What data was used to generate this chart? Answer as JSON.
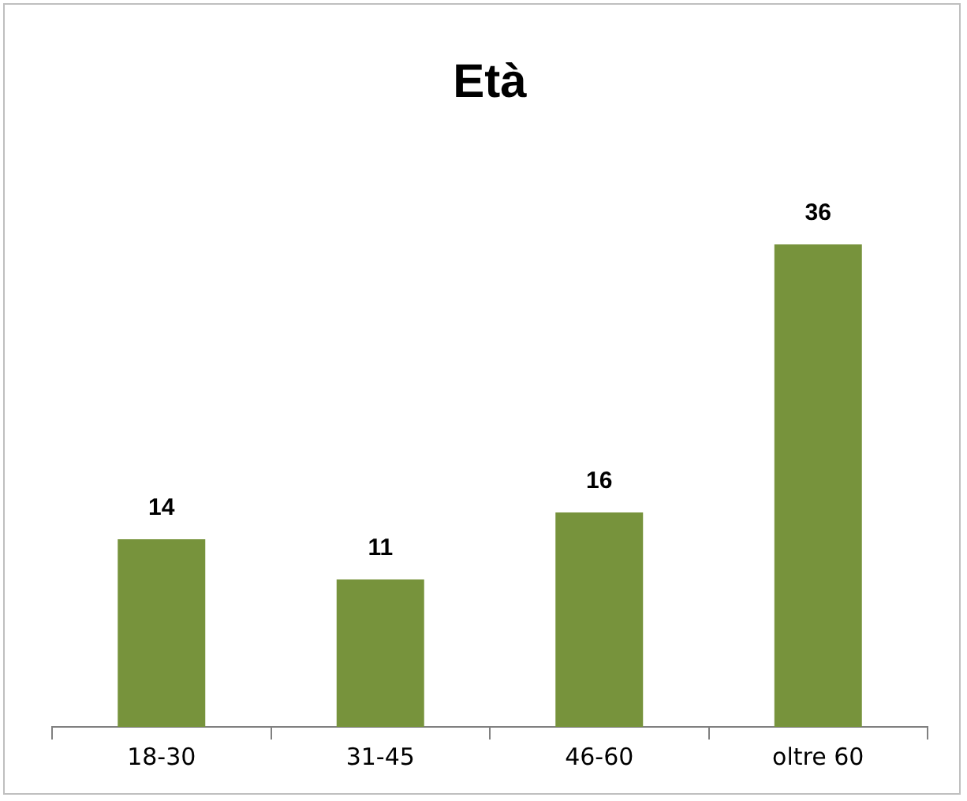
{
  "chart_data": {
    "type": "bar",
    "title": "Età",
    "categories": [
      "18-30",
      "31-45",
      "46-60",
      "oltre 60"
    ],
    "values": [
      14,
      11,
      16,
      36
    ],
    "color": "#77933c",
    "data_labels": true,
    "grid": false,
    "legend": false
  }
}
